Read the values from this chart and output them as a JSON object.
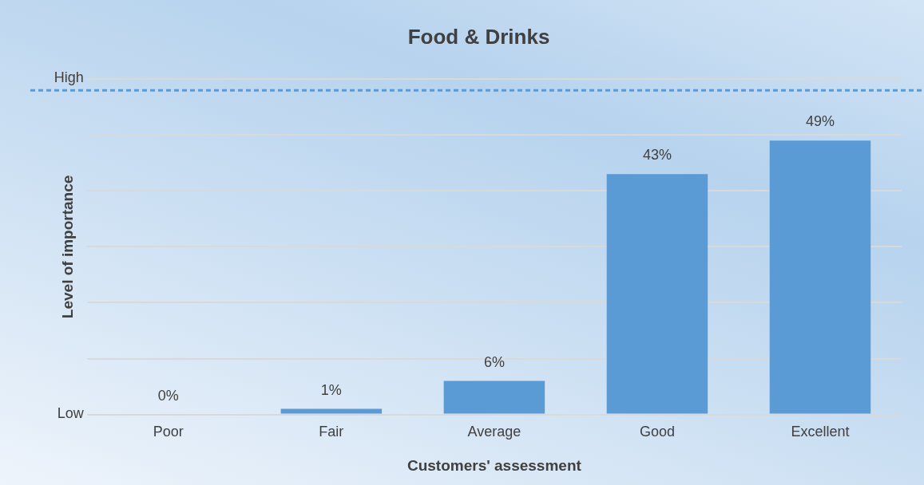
{
  "chart_data": {
    "type": "bar",
    "title": "Food & Drinks",
    "xlabel": "Customers' assessment",
    "ylabel": "Level of importance",
    "categories": [
      "Poor",
      "Fair",
      "Average",
      "Good",
      "Excellent"
    ],
    "values": [
      0,
      1,
      6,
      43,
      49
    ],
    "color": "#5b9bd5",
    "value_labels": [
      "0%",
      "1%",
      "6%",
      "43%",
      "49%"
    ],
    "ylim": [
      0,
      60
    ],
    "yticks": [
      {
        "value": 0,
        "label": null
      },
      {
        "value": 10,
        "label": null
      },
      {
        "value": 20,
        "label": null
      },
      {
        "value": 30,
        "label": null
      },
      {
        "value": 40,
        "label": null
      },
      {
        "value": 50,
        "label": null
      },
      {
        "value": 60,
        "label": null
      }
    ],
    "annotations": [
      "High",
      "Low"
    ],
    "grid": "y",
    "ref_lines": [
      {
        "axis": "y",
        "value": 58,
        "color": "#5b9bd5",
        "line_style": "dashed"
      }
    ]
  }
}
